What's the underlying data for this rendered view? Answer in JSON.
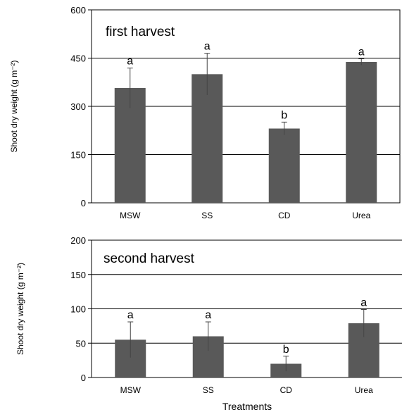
{
  "chart_data": [
    {
      "type": "bar",
      "title": "first harvest",
      "ylabel": "Shoot dry weight (g m⁻²)",
      "xlabel": "",
      "categories": [
        "MSW",
        "SS",
        "CD",
        "Urea"
      ],
      "values": [
        357,
        400,
        231,
        438
      ],
      "errors": [
        62,
        65,
        20,
        10
      ],
      "significance": [
        "a",
        "a",
        "b",
        "a"
      ],
      "ylim": [
        0,
        600
      ],
      "yticks": [
        0,
        150,
        300,
        450,
        600
      ],
      "grid": true,
      "bar_color": "#595959"
    },
    {
      "type": "bar",
      "title": "second harvest",
      "ylabel": "Shoot dry weight (g m⁻²)",
      "xlabel": "Treatments",
      "categories": [
        "MSW",
        "SS",
        "CD",
        "Urea"
      ],
      "values": [
        55,
        60,
        20,
        79
      ],
      "errors": [
        26,
        21,
        11,
        20
      ],
      "significance": [
        "a",
        "a",
        "b",
        "a"
      ],
      "ylim": [
        0,
        200
      ],
      "yticks": [
        0,
        50,
        100,
        150,
        200
      ],
      "grid": true,
      "bar_color": "#595959"
    }
  ]
}
